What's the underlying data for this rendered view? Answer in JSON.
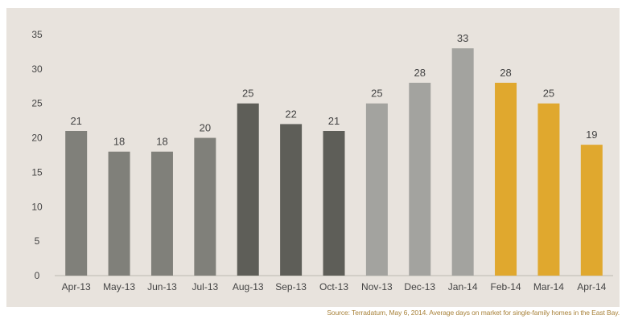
{
  "chart_data": {
    "type": "bar",
    "categories": [
      "Apr-13",
      "May-13",
      "Jun-13",
      "Jul-13",
      "Aug-13",
      "Sep-13",
      "Oct-13",
      "Nov-13",
      "Dec-13",
      "Jan-14",
      "Feb-14",
      "Mar-14",
      "Apr-14"
    ],
    "values": [
      21,
      18,
      18,
      20,
      25,
      22,
      21,
      25,
      28,
      33,
      28,
      25,
      19
    ],
    "bar_colors": [
      "#80807a",
      "#80807a",
      "#80807a",
      "#80807a",
      "#5e5e58",
      "#5e5e58",
      "#5e5e58",
      "#a3a39f",
      "#a3a39f",
      "#a3a39f",
      "#e0a82e",
      "#e0a82e",
      "#e0a82e"
    ],
    "yticks": [
      0,
      5,
      10,
      15,
      20,
      25,
      30,
      35
    ],
    "ylim": [
      0,
      35
    ],
    "title": "",
    "xlabel": "",
    "ylabel": "",
    "grid": false,
    "legend": false
  },
  "source_note": "Source: Terradatum,  May 6, 2014. Average days on market for single-family homes in the East Bay."
}
